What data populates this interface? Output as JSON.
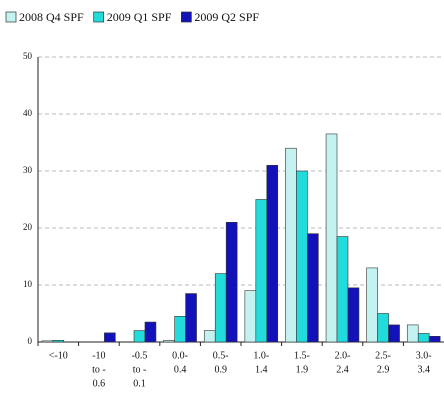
{
  "chart_data": {
    "type": "bar",
    "categories": [
      [
        "<-10"
      ],
      [
        "-10",
        "to -",
        "0.6"
      ],
      [
        "-0.5",
        "to -",
        "0.1"
      ],
      [
        "0.0-",
        "0.4"
      ],
      [
        "0.5-",
        "0.9"
      ],
      [
        "1.0-",
        "1.4"
      ],
      [
        "1.5-",
        "1.9"
      ],
      [
        "2.0-",
        "2.4"
      ],
      [
        "2.5-",
        "2.9"
      ],
      [
        "3.0-",
        "3.4"
      ]
    ],
    "series": [
      {
        "name": "2008 Q4 SPF",
        "color": "#c4f2f0",
        "values": [
          0.2,
          0,
          0,
          0.3,
          2,
          9,
          34,
          36.5,
          13,
          3
        ]
      },
      {
        "name": "2009 Q1 SPF",
        "color": "#22dcdc",
        "values": [
          0.3,
          0,
          2,
          4.5,
          12,
          25,
          30,
          18.5,
          5,
          1.5
        ]
      },
      {
        "name": "2009 Q2 SPF",
        "color": "#1212b8",
        "values": [
          0,
          1.6,
          3.5,
          8.5,
          21,
          31,
          19,
          9.5,
          3,
          1
        ]
      }
    ],
    "ylim": [
      0,
      50
    ],
    "yticks": [
      0,
      10,
      20,
      30,
      40,
      50
    ],
    "grid": true
  }
}
